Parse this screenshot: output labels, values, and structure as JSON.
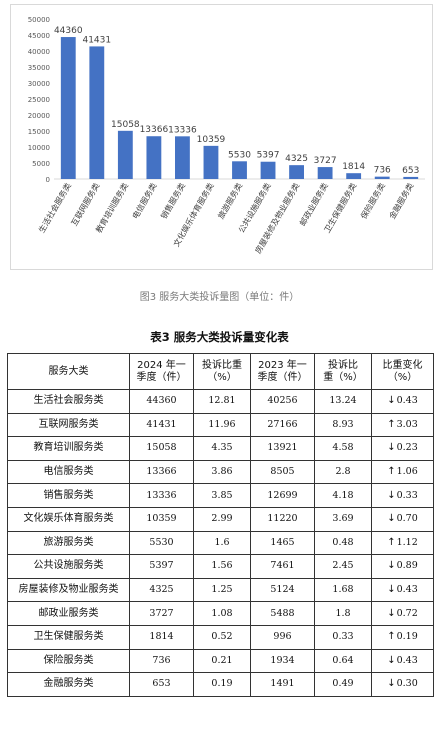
{
  "chart_data": {
    "type": "bar",
    "categories": [
      "生活社会服务类",
      "互联网服务类",
      "教育培训服务类",
      "电信服务类",
      "销售服务类",
      "文化娱乐体育服务类",
      "旅游服务类",
      "公共设施服务类",
      "房屋装修及物业服务类",
      "邮政业服务类",
      "卫生保健服务类",
      "保险服务类",
      "金融服务类"
    ],
    "values": [
      44360,
      41431,
      15058,
      13366,
      13336,
      10359,
      5530,
      5397,
      4325,
      3727,
      1814,
      736,
      653
    ],
    "data_labels": [
      "44360",
      "41431",
      "15058",
      "13366",
      "13336",
      "10359",
      "5530",
      "5397",
      "4325",
      "3727",
      "1814",
      "736",
      "653"
    ],
    "y_ticks": [
      0,
      5000,
      10000,
      15000,
      20000,
      25000,
      30000,
      35000,
      40000,
      45000,
      50000
    ],
    "ylim": [
      0,
      50000
    ],
    "bar_color": "#4472c4",
    "grid": false,
    "legend": "none"
  },
  "caption": "图3 服务大类投诉量图（单位：件）",
  "table": {
    "title": "表3 服务大类投诉量变化表",
    "headers": [
      [
        "服务大类"
      ],
      [
        "2024 年一",
        "季度（件）"
      ],
      [
        "投诉比重",
        "（%）"
      ],
      [
        "2023 年一",
        "季度（件）"
      ],
      [
        "投诉比",
        "重（%）"
      ],
      [
        "比重变化",
        "（%）"
      ]
    ],
    "rows": [
      {
        "category": "生活社会服务类",
        "q2024": "44360",
        "share2024": "12.81",
        "q2023": "40256",
        "share2023": "13.24",
        "dir": "down",
        "change": "0.43"
      },
      {
        "category": "互联网服务类",
        "q2024": "41431",
        "share2024": "11.96",
        "q2023": "27166",
        "share2023": "8.93",
        "dir": "up",
        "change": "3.03"
      },
      {
        "category": "教育培训服务类",
        "q2024": "15058",
        "share2024": "4.35",
        "q2023": "13921",
        "share2023": "4.58",
        "dir": "down",
        "change": "0.23"
      },
      {
        "category": "电信服务类",
        "q2024": "13366",
        "share2024": "3.86",
        "q2023": "8505",
        "share2023": "2.8",
        "dir": "up",
        "change": "1.06"
      },
      {
        "category": "销售服务类",
        "q2024": "13336",
        "share2024": "3.85",
        "q2023": "12699",
        "share2023": "4.18",
        "dir": "down",
        "change": "0.33"
      },
      {
        "category": "文化娱乐体育服务类",
        "q2024": "10359",
        "share2024": "2.99",
        "q2023": "11220",
        "share2023": "3.69",
        "dir": "down",
        "change": "0.70"
      },
      {
        "category": "旅游服务类",
        "q2024": "5530",
        "share2024": "1.6",
        "q2023": "1465",
        "share2023": "0.48",
        "dir": "up",
        "change": "1.12"
      },
      {
        "category": "公共设施服务类",
        "q2024": "5397",
        "share2024": "1.56",
        "q2023": "7461",
        "share2023": "2.45",
        "dir": "down",
        "change": "0.89"
      },
      {
        "category": "房屋装修及物业服务类",
        "q2024": "4325",
        "share2024": "1.25",
        "q2023": "5124",
        "share2023": "1.68",
        "dir": "down",
        "change": "0.43"
      },
      {
        "category": "邮政业服务类",
        "q2024": "3727",
        "share2024": "1.08",
        "q2023": "5488",
        "share2023": "1.8",
        "dir": "down",
        "change": "0.72"
      },
      {
        "category": "卫生保健服务类",
        "q2024": "1814",
        "share2024": "0.52",
        "q2023": "996",
        "share2023": "0.33",
        "dir": "up",
        "change": "0.19"
      },
      {
        "category": "保险服务类",
        "q2024": "736",
        "share2024": "0.21",
        "q2023": "1934",
        "share2023": "0.64",
        "dir": "down",
        "change": "0.43"
      },
      {
        "category": "金融服务类",
        "q2024": "653",
        "share2024": "0.19",
        "q2023": "1491",
        "share2023": "0.49",
        "dir": "down",
        "change": "0.30"
      }
    ],
    "arrows": {
      "up": "↑",
      "down": "↓"
    }
  }
}
